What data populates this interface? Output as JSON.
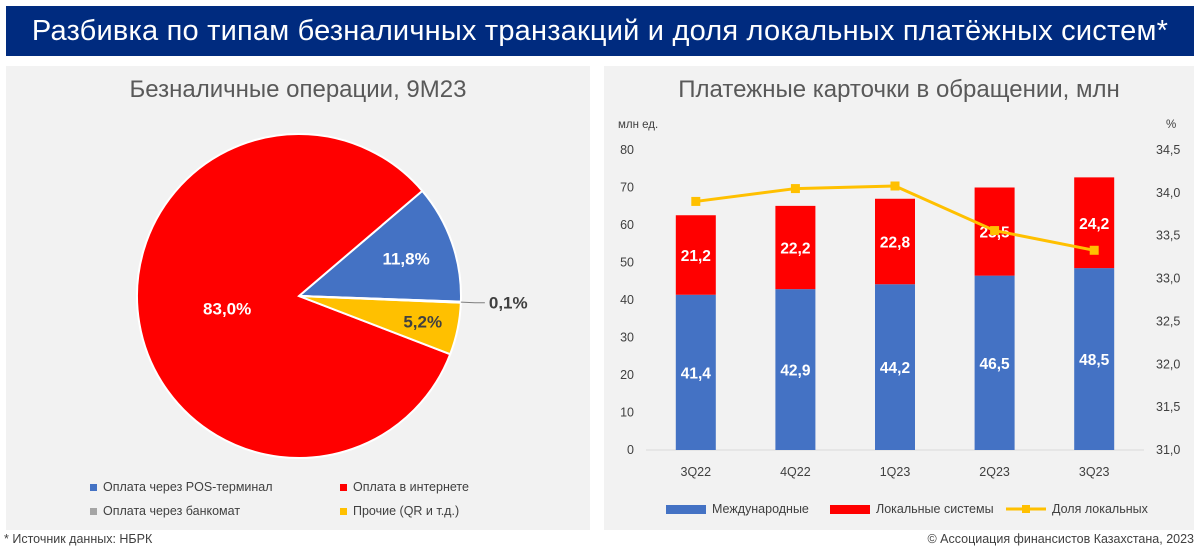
{
  "header": {
    "title": "Разбивка по типам безналичных транзакций и доля локальных платёжных систем*"
  },
  "colors": {
    "header_bg": "#002b7f",
    "blue": "#4472c4",
    "red": "#ff0000",
    "gray": "#a5a5a5",
    "gold": "#ffc000"
  },
  "chart_data": [
    {
      "type": "pie",
      "title": "Безналичные операции, 9М23",
      "slices": [
        {
          "name": "Оплата через POS-терминал",
          "value": 11.8,
          "label": "11,8%",
          "color": "#4472c4"
        },
        {
          "name": "Оплата в интернете",
          "value": 83.0,
          "label": "83,0%",
          "color": "#ff0000"
        },
        {
          "name": "Прочие (QR и т.д.)",
          "value": 5.2,
          "label": "5,2%",
          "color": "#ffc000"
        },
        {
          "name": "Оплата через банкомат",
          "value": 0.1,
          "label": "0,1%",
          "color": "#a5a5a5"
        }
      ],
      "legend": [
        {
          "name": "Оплата через POS-терминал",
          "color": "#4472c4"
        },
        {
          "name": "Оплата в интернете",
          "color": "#ff0000"
        },
        {
          "name": "Оплата через банкомат",
          "color": "#a5a5a5"
        },
        {
          "name": "Прочие (QR и т.д.)",
          "color": "#ffc000"
        }
      ],
      "legend_position": "bottom"
    },
    {
      "type": "bar",
      "stacked": true,
      "title": "Платежные карточки в обращении, млн",
      "categories": [
        "3Q22",
        "4Q22",
        "1Q23",
        "2Q23",
        "3Q23"
      ],
      "ylabel_left": "млн ед.",
      "ylabel_right": "%",
      "ylim_left": [
        0,
        80
      ],
      "yticks_left": [
        "0",
        "10",
        "20",
        "30",
        "40",
        "50",
        "60",
        "70",
        "80"
      ],
      "ylim_right": [
        31.0,
        34.5
      ],
      "yticks_right": [
        "31,0",
        "31,5",
        "32,0",
        "32,5",
        "33,0",
        "33,5",
        "34,0",
        "34,5"
      ],
      "series": [
        {
          "name": "Международные",
          "type": "bar",
          "color": "#4472c4",
          "values": [
            41.4,
            42.9,
            44.2,
            46.5,
            48.5
          ],
          "labels": [
            "41,4",
            "42,9",
            "44,2",
            "46,5",
            "48,5"
          ]
        },
        {
          "name": "Локальные системы",
          "type": "bar",
          "color": "#ff0000",
          "values": [
            21.2,
            22.2,
            22.8,
            23.5,
            24.2
          ],
          "labels": [
            "21,2",
            "22,2",
            "22,8",
            "23,5",
            "24,2"
          ]
        },
        {
          "name": "Доля локальных",
          "type": "line",
          "axis": "right",
          "color": "#ffc000",
          "values": [
            33.9,
            34.05,
            34.08,
            33.56,
            33.33
          ]
        }
      ],
      "legend_position": "bottom",
      "grid": false
    }
  ],
  "footer": {
    "source": "* Источник данных: НБРК",
    "copyright": "© Ассоциация финансистов Казахстана, 2023"
  }
}
